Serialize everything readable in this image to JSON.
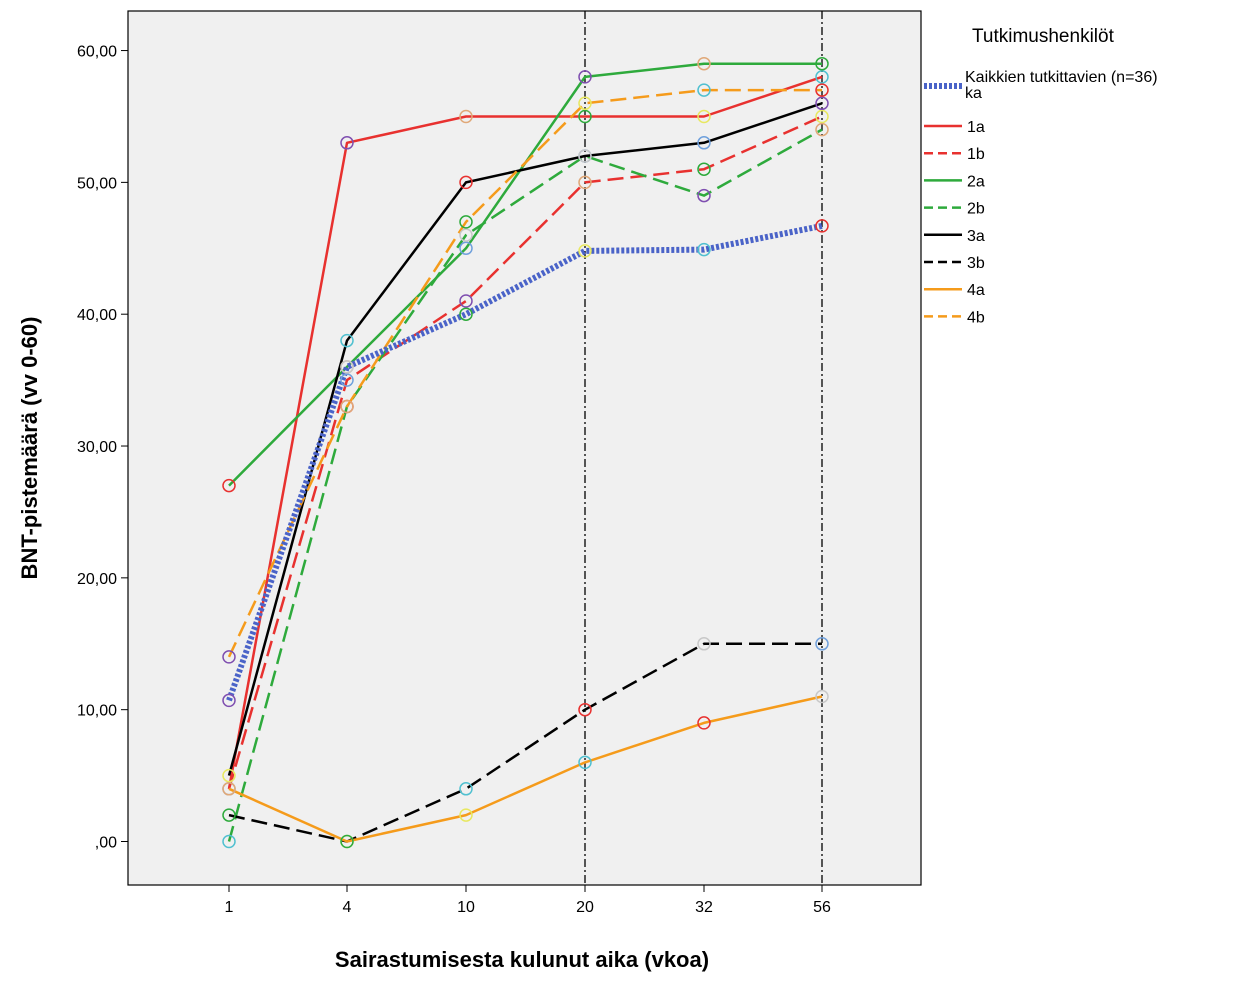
{
  "chart_data": {
    "type": "line",
    "xlabel": "Sairastumisesta kulunut aika (vkoa)",
    "ylabel": "BNT-pistemäärä (vv 0-60)",
    "categories": [
      "1",
      "4",
      "10",
      "20",
      "32",
      "56"
    ],
    "y_ticks": [
      ",00",
      "10,00",
      "20,00",
      "30,00",
      "40,00",
      "50,00",
      "60,00"
    ],
    "ylim": [
      -3.3,
      63
    ],
    "grid": false,
    "reference_lines_at": [
      "20",
      "56"
    ],
    "legend": {
      "title": "Tutkimushenkilöt",
      "placement": "right"
    },
    "series": [
      {
        "name": "Kaikkien tutkittavien (n=36) ka",
        "values": [
          10.7,
          36,
          40,
          44.8,
          44.9,
          46.7
        ],
        "color": "#4a63c8",
        "dash": "dotted-thick"
      },
      {
        "name": "1a",
        "values": [
          4,
          53,
          55,
          55,
          55,
          58
        ],
        "color": "#e8312f",
        "dash": "solid"
      },
      {
        "name": "1b",
        "values": [
          4,
          35,
          41,
          50,
          51,
          55
        ],
        "color": "#e8312f",
        "dash": "dashed"
      },
      {
        "name": "2a",
        "values": [
          27,
          36,
          45,
          58,
          59,
          59
        ],
        "color": "#2eaa3c",
        "dash": "solid"
      },
      {
        "name": "2b",
        "values": [
          0,
          33,
          46,
          52,
          49,
          54
        ],
        "color": "#2eaa3c",
        "dash": "dashed"
      },
      {
        "name": "3a",
        "values": [
          5,
          38,
          50,
          52,
          53,
          56
        ],
        "color": "#000000",
        "dash": "solid"
      },
      {
        "name": "3b",
        "values": [
          2,
          0,
          4,
          10,
          15,
          15
        ],
        "color": "#000000",
        "dash": "dashed"
      },
      {
        "name": "4a",
        "values": [
          4,
          0,
          2,
          6,
          9,
          11
        ],
        "color": "#f59b1b",
        "dash": "solid"
      },
      {
        "name": "4b",
        "values": [
          14,
          33,
          47,
          56,
          57,
          57
        ],
        "color": "#f59b1b",
        "dash": "dashed"
      }
    ]
  }
}
